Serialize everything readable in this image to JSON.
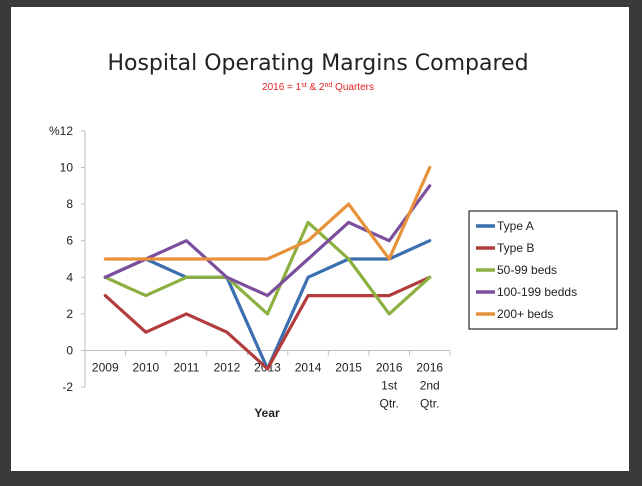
{
  "chart_data": {
    "type": "line",
    "title": "Hospital Operating Margins Compared",
    "subtitle": "2016 = 1st & 2nd Quarters",
    "xlabel": "Year",
    "ylabel": "%",
    "ylim": [
      -2,
      12
    ],
    "yticks": [
      -2,
      0,
      2,
      4,
      6,
      8,
      10,
      12
    ],
    "grid": false,
    "legend_position": "right",
    "categories": [
      {
        "lines": [
          "2009"
        ]
      },
      {
        "lines": [
          "2010"
        ]
      },
      {
        "lines": [
          "2011"
        ]
      },
      {
        "lines": [
          "2012"
        ]
      },
      {
        "lines": [
          "2013"
        ]
      },
      {
        "lines": [
          "2014"
        ]
      },
      {
        "lines": [
          "2015"
        ]
      },
      {
        "lines": [
          "2016",
          "1st",
          "Qtr."
        ]
      },
      {
        "lines": [
          "2016",
          "2nd",
          "Qtr."
        ]
      }
    ],
    "series": [
      {
        "name": "Type A",
        "color": "#3a6fb0",
        "values": [
          4,
          5,
          4,
          4,
          -1,
          4,
          5,
          5,
          6
        ]
      },
      {
        "name": "Type B",
        "color": "#b23b3b",
        "values": [
          3,
          1,
          2,
          1,
          -1,
          3,
          3,
          3,
          4
        ]
      },
      {
        "name": "50-99 beds",
        "color": "#8cb040",
        "values": [
          4,
          3,
          4,
          4,
          2,
          7,
          5,
          2,
          4
        ]
      },
      {
        "name": "100-199 bedds",
        "color": "#7b4f9d",
        "values": [
          4,
          5,
          6,
          4,
          3,
          5,
          7,
          6,
          9
        ]
      },
      {
        "name": "200+ beds",
        "color": "#e8913a",
        "values": [
          5,
          5,
          5,
          5,
          5,
          6,
          8,
          5,
          10
        ]
      }
    ]
  }
}
